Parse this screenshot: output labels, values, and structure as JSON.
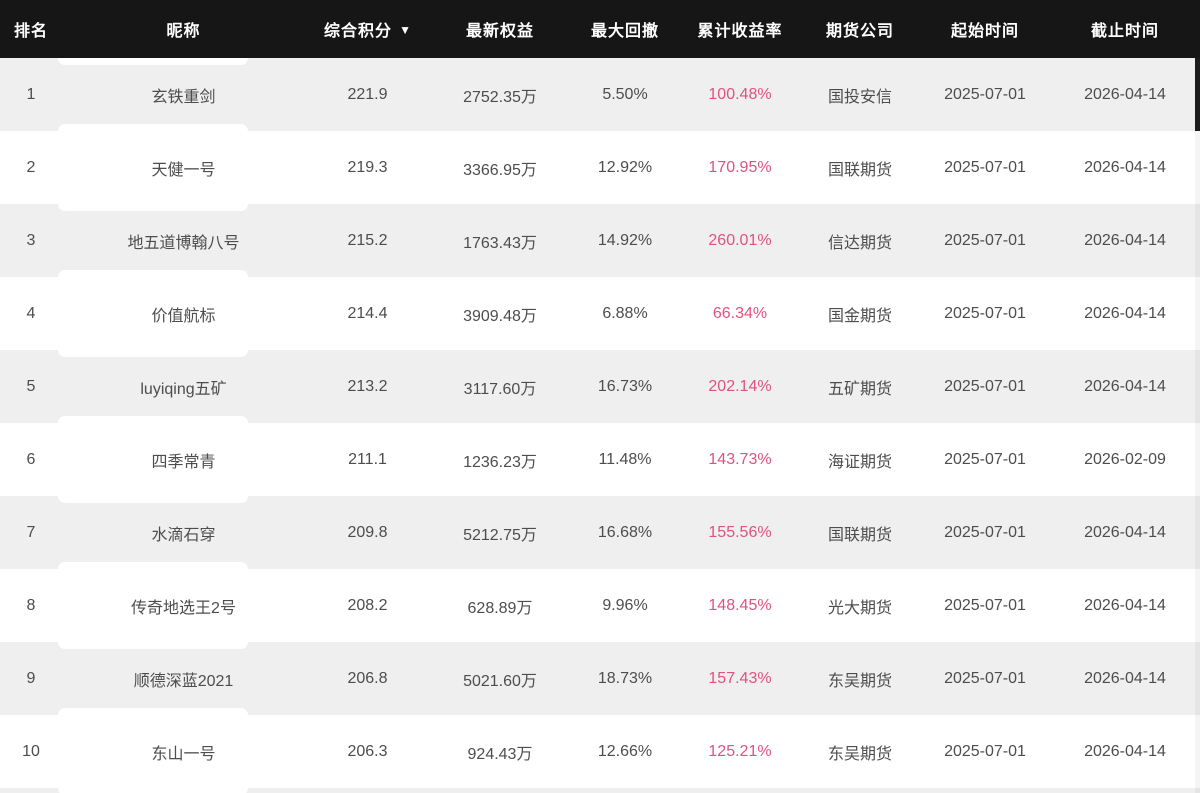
{
  "colors": {
    "header_bg": "#161616",
    "header_text": "#ffffff",
    "row": "#ffffff",
    "row_alt": "#efefef",
    "text": "#4d4d4d",
    "pink_highlight": "#e0527f"
  },
  "table": {
    "columns": [
      {
        "key": "rank",
        "label": "排名",
        "sortable": false
      },
      {
        "key": "nickname",
        "label": "昵称",
        "sortable": false
      },
      {
        "key": "score",
        "label": "综合积分",
        "sortable": true,
        "sort_icon": "▼"
      },
      {
        "key": "equity",
        "label": "最新权益",
        "sortable": false
      },
      {
        "key": "drawdown",
        "label": "最大回撤",
        "sortable": false
      },
      {
        "key": "return",
        "label": "累计收益率",
        "sortable": false
      },
      {
        "key": "company",
        "label": "期货公司",
        "sortable": false
      },
      {
        "key": "start",
        "label": "起始时间",
        "sortable": false
      },
      {
        "key": "end",
        "label": "截止时间",
        "sortable": false
      }
    ],
    "rows": [
      {
        "rank": "1",
        "nickname": "玄铁重剑",
        "score": "221.9",
        "equity": "2752.35万",
        "drawdown": "5.50%",
        "return": "100.48%",
        "company": "国投安信",
        "start": "2025-07-01",
        "end": "2026-04-14"
      },
      {
        "rank": "2",
        "nickname": "天健一号",
        "score": "219.3",
        "equity": "3366.95万",
        "drawdown": "12.92%",
        "return": "170.95%",
        "company": "国联期货",
        "start": "2025-07-01",
        "end": "2026-04-14"
      },
      {
        "rank": "3",
        "nickname": "地五道博翰八号",
        "score": "215.2",
        "equity": "1763.43万",
        "drawdown": "14.92%",
        "return": "260.01%",
        "company": "信达期货",
        "start": "2025-07-01",
        "end": "2026-04-14"
      },
      {
        "rank": "4",
        "nickname": "价值航标",
        "score": "214.4",
        "equity": "3909.48万",
        "drawdown": "6.88%",
        "return": "66.34%",
        "company": "国金期货",
        "start": "2025-07-01",
        "end": "2026-04-14"
      },
      {
        "rank": "5",
        "nickname": "luyiqing五矿",
        "score": "213.2",
        "equity": "3117.60万",
        "drawdown": "16.73%",
        "return": "202.14%",
        "company": "五矿期货",
        "start": "2025-07-01",
        "end": "2026-04-14"
      },
      {
        "rank": "6",
        "nickname": "四季常青",
        "score": "211.1",
        "equity": "1236.23万",
        "drawdown": "11.48%",
        "return": "143.73%",
        "company": "海证期货",
        "start": "2025-07-01",
        "end": "2026-02-09"
      },
      {
        "rank": "7",
        "nickname": "水滴石穿",
        "score": "209.8",
        "equity": "5212.75万",
        "drawdown": "16.68%",
        "return": "155.56%",
        "company": "国联期货",
        "start": "2025-07-01",
        "end": "2026-04-14"
      },
      {
        "rank": "8",
        "nickname": "传奇地选王2号",
        "score": "208.2",
        "equity": "628.89万",
        "drawdown": "9.96%",
        "return": "148.45%",
        "company": "光大期货",
        "start": "2025-07-01",
        "end": "2026-04-14"
      },
      {
        "rank": "9",
        "nickname": "顺德深蓝2021",
        "score": "206.8",
        "equity": "5021.60万",
        "drawdown": "18.73%",
        "return": "157.43%",
        "company": "东吴期货",
        "start": "2025-07-01",
        "end": "2026-04-14"
      },
      {
        "rank": "10",
        "nickname": "东山一号",
        "score": "206.3",
        "equity": "924.43万",
        "drawdown": "12.66%",
        "return": "125.21%",
        "company": "东吴期货",
        "start": "2025-07-01",
        "end": "2026-04-14"
      }
    ]
  }
}
